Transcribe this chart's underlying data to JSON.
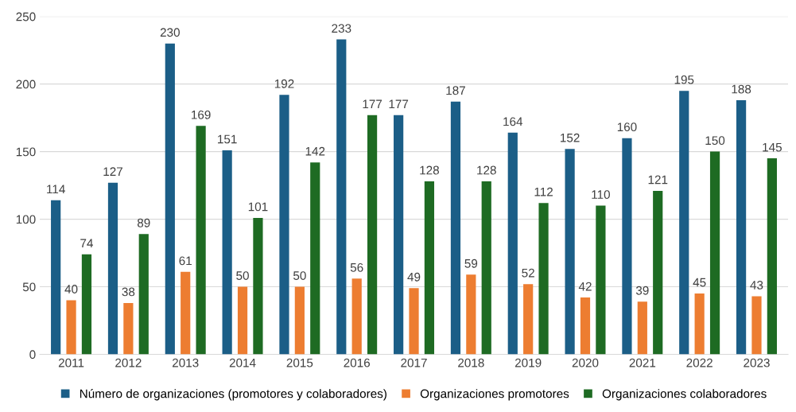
{
  "chart_data": {
    "type": "bar",
    "categories": [
      "2011",
      "2012",
      "2013",
      "2014",
      "2015",
      "2016",
      "2017",
      "2018",
      "2019",
      "2020",
      "2021",
      "2022",
      "2023"
    ],
    "series": [
      {
        "name": "Número de organizaciones (promotores y colaboradores)",
        "color": "#1b5e87",
        "values": [
          114,
          127,
          230,
          151,
          192,
          233,
          177,
          187,
          164,
          152,
          160,
          195,
          188
        ]
      },
      {
        "name": "Organizaciones promotores",
        "color": "#ed7d31",
        "values": [
          40,
          38,
          61,
          50,
          50,
          56,
          49,
          59,
          52,
          42,
          39,
          45,
          43
        ]
      },
      {
        "name": "Organizaciones colaboradores",
        "color": "#1e6b23",
        "values": [
          74,
          89,
          169,
          101,
          142,
          177,
          128,
          128,
          112,
          110,
          121,
          150,
          145
        ]
      }
    ],
    "ylim": [
      0,
      250
    ],
    "yticks": [
      0,
      50,
      100,
      150,
      200,
      250
    ],
    "grid": "y",
    "legend": "bottom",
    "data_labels": true
  }
}
